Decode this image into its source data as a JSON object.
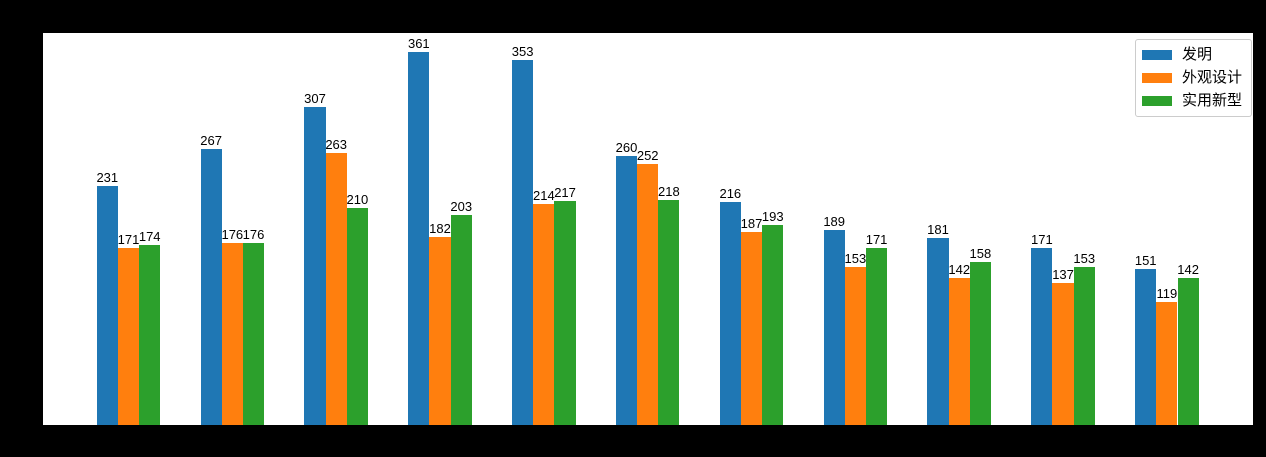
{
  "figure": {
    "background_color": "#000000",
    "plot_background_color": "#ffffff",
    "value_label_color": "#000000"
  },
  "chart_data": {
    "type": "bar",
    "n_groups": 11,
    "categories_visible": false,
    "series": [
      {
        "name": "发明",
        "color": "#1f77b4",
        "values": [
          231,
          267,
          307,
          361,
          353,
          260,
          216,
          189,
          181,
          171,
          151
        ]
      },
      {
        "name": "外观设计",
        "color": "#ff7f0e",
        "values": [
          171,
          176,
          263,
          182,
          214,
          252,
          187,
          153,
          142,
          137,
          119
        ]
      },
      {
        "name": "实用新型",
        "color": "#2ca02c",
        "values": [
          174,
          176,
          210,
          203,
          217,
          218,
          193,
          171,
          158,
          153,
          142
        ]
      }
    ],
    "bar_value_labels_shown": true,
    "title": "",
    "xlabel": "",
    "ylabel": "",
    "ylim": [
      0,
      379
    ],
    "grid": false,
    "legend_position": "upper right"
  }
}
